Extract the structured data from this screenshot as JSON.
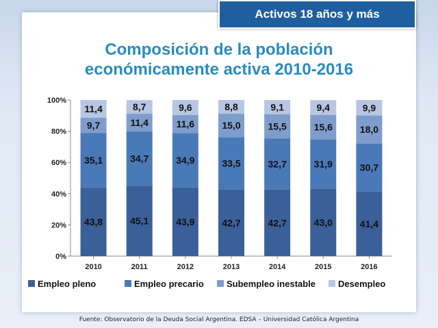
{
  "header": {
    "tag": "Activos 18 años y más",
    "title_line1": "Composición de la población",
    "title_line2": "económicamente activa 2010-2016"
  },
  "footer": {
    "source": "Fuente:  Observatorio de la Deuda Social Argentina. EDSA  – Universidad Católica Argentina"
  },
  "colors": {
    "accent": "#1f5f9f",
    "title": "#2a8bc0"
  },
  "chart_data": {
    "type": "bar",
    "stacked": true,
    "categories": [
      "2010",
      "2011",
      "2012",
      "2013",
      "2014",
      "2015",
      "2016"
    ],
    "yticks": [
      "0%",
      "20%",
      "40%",
      "60%",
      "80%",
      "100%"
    ],
    "ylim": [
      0,
      100
    ],
    "grid": false,
    "legend_position": "bottom",
    "series": [
      {
        "name": "Empleo pleno",
        "color": "#3b5f98",
        "values": [
          43.8,
          45.1,
          43.9,
          42.7,
          42.7,
          43.0,
          41.4
        ],
        "labels": [
          "43,8",
          "45,1",
          "43,9",
          "42,7",
          "42,7",
          "43,0",
          "41,4"
        ]
      },
      {
        "name": "Empleo precario",
        "color": "#4a79b8",
        "values": [
          35.1,
          34.7,
          34.9,
          33.5,
          32.7,
          31.9,
          30.7
        ],
        "labels": [
          "35,1",
          "34,7",
          "34,9",
          "33,5",
          "32,7",
          "31,9",
          "30,7"
        ]
      },
      {
        "name": "Subempleo inestable",
        "color": "#7f9dcc",
        "values": [
          9.7,
          11.4,
          11.6,
          15.0,
          15.5,
          15.6,
          18.0
        ],
        "labels": [
          "9,7",
          "11,4",
          "11,6",
          "15,0",
          "15,5",
          "15,6",
          "18,0"
        ]
      },
      {
        "name": "Desempleo",
        "color": "#b7c6e2",
        "values": [
          11.4,
          8.7,
          9.6,
          8.8,
          9.1,
          9.4,
          9.9
        ],
        "labels": [
          "11,4",
          "8,7",
          "9,6",
          "8,8",
          "9,1",
          "9,4",
          "9,9"
        ]
      }
    ]
  }
}
